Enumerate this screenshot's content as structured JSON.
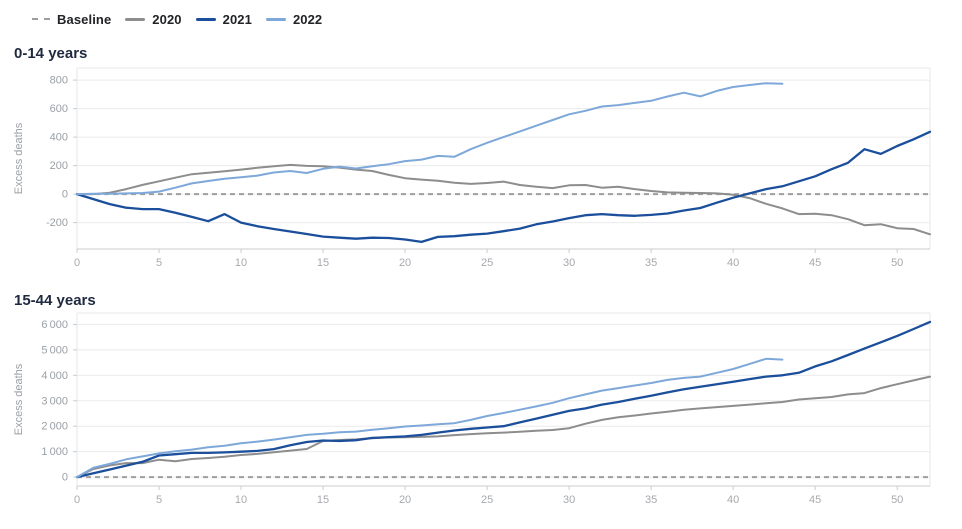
{
  "legend": {
    "items": [
      {
        "label": "Baseline",
        "swatch": "dashed",
        "color": "#9e9e9e"
      },
      {
        "label": "2020",
        "swatch": "line",
        "color": "#8d8d8d"
      },
      {
        "label": "2021",
        "swatch": "line",
        "color": "#1b4e9b"
      },
      {
        "label": "2022",
        "swatch": "line",
        "color": "#7ea8d9"
      }
    ]
  },
  "chart_data": [
    {
      "type": "line",
      "title": "0-14 years",
      "xlabel": "",
      "ylabel": "Excess deaths",
      "xlim": [
        0,
        52
      ],
      "ylim": [
        -385,
        885
      ],
      "grid": "horizontal",
      "legend_position": "top-shared",
      "x_ticks": [
        0,
        5,
        10,
        15,
        20,
        25,
        30,
        35,
        40,
        45,
        50
      ],
      "y_ticks": [
        {
          "value": 800,
          "label": "800"
        },
        {
          "value": 600,
          "label": "600"
        },
        {
          "value": 400,
          "label": "400"
        },
        {
          "value": 200,
          "label": "200"
        },
        {
          "value": 0,
          "label": "0"
        },
        {
          "value": -200,
          "label": "-200"
        }
      ],
      "baseline": {
        "value": 0,
        "style": "dashed",
        "color": "#9e9e9e"
      },
      "series": [
        {
          "name": "2020",
          "color": "#8d8d8d",
          "width": 2,
          "x_start": 0,
          "values": [
            0,
            0,
            10,
            35,
            65,
            90,
            115,
            140,
            150,
            160,
            172,
            185,
            195,
            205,
            198,
            196,
            186,
            172,
            162,
            135,
            112,
            102,
            94,
            80,
            72,
            78,
            88,
            64,
            52,
            42,
            62,
            64,
            45,
            52,
            35,
            22,
            12,
            10,
            8,
            5,
            -5,
            -28,
            -68,
            -100,
            -140,
            -138,
            -148,
            -176,
            -218,
            -211,
            -239,
            -245,
            -282
          ]
        },
        {
          "name": "2021",
          "color": "#1b4e9b",
          "width": 2.3,
          "x_start": 0,
          "values": [
            0,
            -35,
            -70,
            -95,
            -105,
            -105,
            -130,
            -160,
            -190,
            -140,
            -200,
            -225,
            -245,
            -262,
            -280,
            -298,
            -306,
            -313,
            -306,
            -308,
            -318,
            -335,
            -300,
            -295,
            -285,
            -277,
            -260,
            -242,
            -212,
            -192,
            -168,
            -148,
            -140,
            -148,
            -152,
            -146,
            -136,
            -115,
            -97,
            -60,
            -25,
            5,
            35,
            55,
            90,
            125,
            175,
            220,
            315,
            282,
            338,
            385,
            437
          ]
        },
        {
          "name": "2022",
          "color": "#7ea8d9",
          "width": 2,
          "x_start": 0,
          "values": [
            0,
            2,
            2,
            5,
            8,
            18,
            45,
            75,
            92,
            108,
            118,
            130,
            152,
            162,
            148,
            178,
            193,
            180,
            196,
            210,
            232,
            242,
            268,
            262,
            315,
            360,
            400,
            440,
            480,
            520,
            560,
            585,
            615,
            625,
            640,
            655,
            685,
            712,
            686,
            724,
            752,
            766,
            778,
            774
          ]
        }
      ]
    },
    {
      "type": "line",
      "title": "15-44 years",
      "xlabel": "",
      "ylabel": "Excess deaths",
      "xlim": [
        0,
        52
      ],
      "ylim": [
        -350,
        6450
      ],
      "grid": "horizontal",
      "legend_position": "top-shared",
      "x_ticks": [
        0,
        5,
        10,
        15,
        20,
        25,
        30,
        35,
        40,
        45,
        50
      ],
      "y_ticks": [
        {
          "value": 6000,
          "label": "6 000"
        },
        {
          "value": 5000,
          "label": "5 000"
        },
        {
          "value": 4000,
          "label": "4 000"
        },
        {
          "value": 3000,
          "label": "3 000"
        },
        {
          "value": 2000,
          "label": "2 000"
        },
        {
          "value": 1000,
          "label": "1 000"
        },
        {
          "value": 0,
          "label": "0"
        }
      ],
      "baseline": {
        "value": 0,
        "style": "dashed",
        "color": "#9e9e9e"
      },
      "series": [
        {
          "name": "2020",
          "color": "#8d8d8d",
          "width": 2,
          "x_start": 0,
          "values": [
            0,
            320,
            460,
            550,
            550,
            685,
            620,
            710,
            750,
            800,
            870,
            910,
            975,
            1040,
            1105,
            1420,
            1460,
            1480,
            1530,
            1560,
            1570,
            1580,
            1600,
            1650,
            1690,
            1720,
            1750,
            1780,
            1820,
            1850,
            1920,
            2100,
            2250,
            2350,
            2420,
            2500,
            2570,
            2650,
            2700,
            2750,
            2800,
            2850,
            2900,
            2950,
            3050,
            3100,
            3150,
            3250,
            3300,
            3500,
            3650,
            3800,
            3950
          ]
        },
        {
          "name": "2021",
          "color": "#1b4e9b",
          "width": 2.3,
          "x_start": 0,
          "values": [
            0,
            150,
            300,
            450,
            600,
            850,
            900,
            950,
            950,
            970,
            1000,
            1030,
            1100,
            1250,
            1380,
            1440,
            1420,
            1450,
            1540,
            1570,
            1600,
            1660,
            1750,
            1830,
            1900,
            1950,
            2000,
            2150,
            2300,
            2450,
            2600,
            2700,
            2850,
            2950,
            3080,
            3200,
            3330,
            3450,
            3550,
            3650,
            3750,
            3850,
            3950,
            4000,
            4100,
            4350,
            4550,
            4800,
            5050,
            5300,
            5550,
            5820,
            6100
          ]
        },
        {
          "name": "2022",
          "color": "#7ea8d9",
          "width": 2,
          "x_start": 0,
          "values": [
            0,
            370,
            520,
            700,
            815,
            930,
            1015,
            1080,
            1170,
            1235,
            1330,
            1395,
            1475,
            1565,
            1660,
            1700,
            1765,
            1790,
            1860,
            1920,
            1990,
            2030,
            2080,
            2120,
            2250,
            2400,
            2520,
            2650,
            2780,
            2920,
            3100,
            3250,
            3400,
            3500,
            3600,
            3700,
            3820,
            3900,
            3950,
            4100,
            4250,
            4450,
            4650,
            4620
          ]
        }
      ]
    }
  ],
  "style": {
    "gridline_color": "#ececec",
    "plot_border_color": "#e7e7e7",
    "axis_line_color": "#c9ccd0",
    "tick_color": "#c9ccd0"
  }
}
